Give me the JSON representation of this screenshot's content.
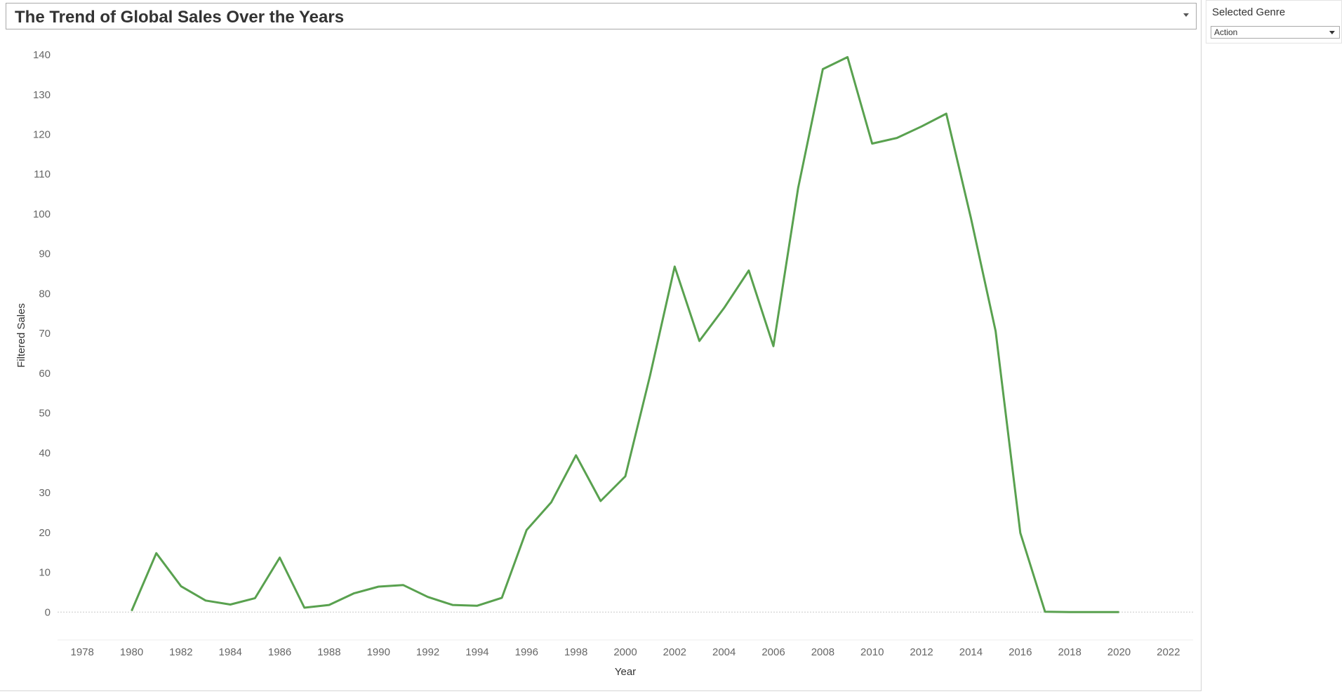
{
  "title": "The Trend of Global Sales Over the Years",
  "filter": {
    "title": "Selected Genre",
    "value": "Action"
  },
  "chart_data": {
    "type": "line",
    "xlabel": "Year",
    "ylabel": "Filtered Sales",
    "xlim": [
      1977,
      2023
    ],
    "ylim": [
      -7,
      146
    ],
    "xticks": [
      1978,
      1980,
      1982,
      1984,
      1986,
      1988,
      1990,
      1992,
      1994,
      1996,
      1998,
      2000,
      2002,
      2004,
      2006,
      2008,
      2010,
      2012,
      2014,
      2016,
      2018,
      2020,
      2022
    ],
    "yticks": [
      0,
      10,
      20,
      30,
      40,
      50,
      60,
      70,
      80,
      90,
      100,
      110,
      120,
      130,
      140
    ],
    "grid": false,
    "zero_line": true,
    "color": "#59a14f",
    "series": [
      {
        "x": [
          1980,
          1981,
          1982,
          1983,
          1984,
          1985,
          1986,
          1987,
          1988,
          1989,
          1990,
          1991,
          1992,
          1993,
          1994,
          1995,
          1996,
          1997,
          1998,
          1999,
          2000,
          2001,
          2002,
          2003,
          2004,
          2005,
          2006,
          2007,
          2008,
          2009,
          2010,
          2011,
          2012,
          2013,
          2014,
          2015,
          2016,
          2017,
          2018,
          2019,
          2020
        ],
        "values": [
          0.3,
          14.8,
          6.5,
          2.9,
          1.9,
          3.5,
          13.7,
          1.1,
          1.8,
          4.7,
          6.4,
          6.8,
          3.8,
          1.8,
          1.6,
          3.6,
          20.6,
          27.6,
          39.4,
          27.9,
          34.1,
          59.4,
          86.8,
          68.1,
          76.4,
          85.8,
          66.8,
          106.5,
          136.4,
          139.4,
          117.7,
          119.1,
          122.0,
          125.2,
          99.0,
          70.6,
          19.9,
          0.1,
          0.0,
          0.0,
          0.0
        ]
      }
    ]
  }
}
